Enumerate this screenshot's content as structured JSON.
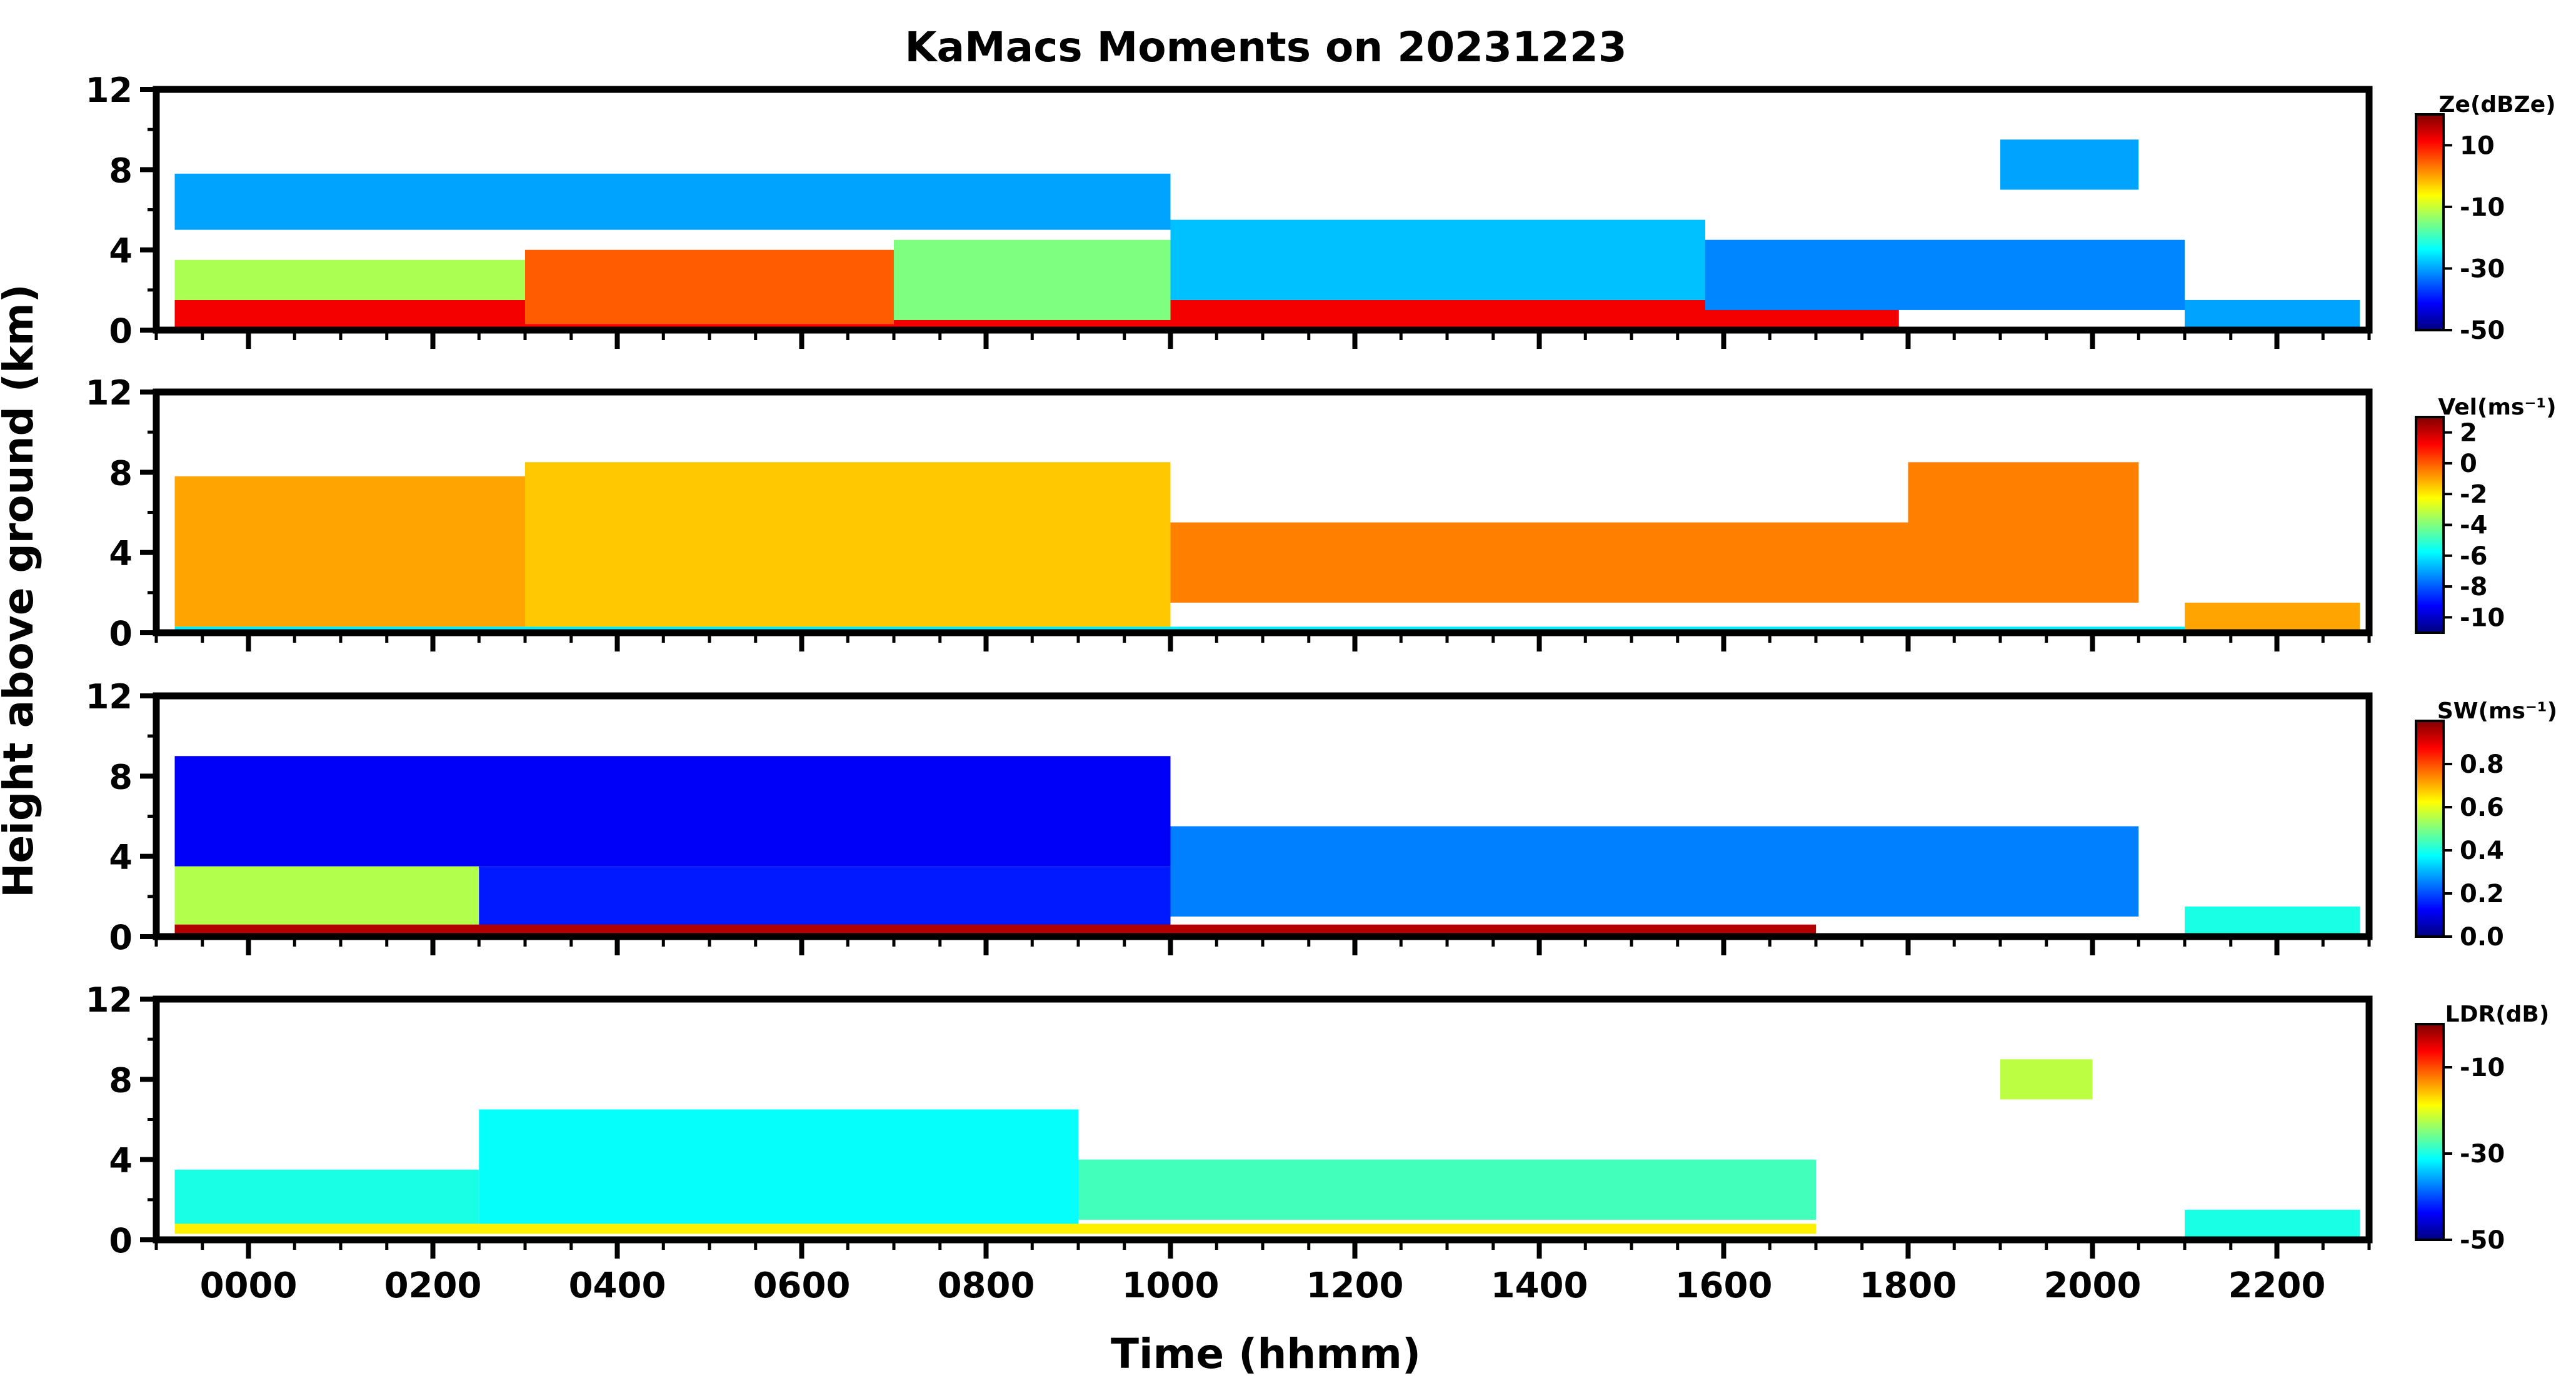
{
  "chart_data": {
    "type": "heatmap",
    "title": "KaMacs Moments on 20231223",
    "xlabel": "Time (hhmm)",
    "ylabel": "Height above ground (km)",
    "x_range": [
      -100,
      2300
    ],
    "x_ticks": [
      "0000",
      "0200",
      "0400",
      "0600",
      "0800",
      "1000",
      "1200",
      "1400",
      "1600",
      "1800",
      "2000",
      "2200"
    ],
    "y_range": [
      0,
      12
    ],
    "y_ticks": [
      "0",
      "4",
      "8",
      "12"
    ],
    "colormap": "jet",
    "colormap_stops": [
      "#00007f",
      "#0000ff",
      "#007fff",
      "#00ffff",
      "#7fff7f",
      "#ffff00",
      "#ff7f00",
      "#ff0000",
      "#7f0000"
    ],
    "panels": [
      {
        "id": "ze",
        "cbar_label": "Ze(dBZe)",
        "cbar_range": [
          -50,
          20
        ],
        "cbar_ticks": [
          "10",
          "-10",
          "-30",
          "-50"
        ],
        "cbar_tick_values": [
          10,
          -10,
          -30,
          -50
        ],
        "layers": [
          {
            "t0": -80,
            "t1": 1790,
            "h0": 0,
            "h1": 1.5,
            "v": 12
          },
          {
            "t0": 300,
            "t1": 700,
            "h0": 0.3,
            "h1": 4,
            "v": 5
          },
          {
            "t0": 700,
            "t1": 1000,
            "h0": 0.5,
            "h1": 4.5,
            "v": -15
          },
          {
            "t0": -80,
            "t1": 300,
            "h0": 1.5,
            "h1": 3.5,
            "v": -12
          },
          {
            "t0": -80,
            "t1": 1000,
            "h0": 5,
            "h1": 7.8,
            "v": -30
          },
          {
            "t0": 1000,
            "t1": 1580,
            "h0": 1.5,
            "h1": 5.5,
            "v": -28
          },
          {
            "t0": 1580,
            "t1": 2100,
            "h0": 1,
            "h1": 4.5,
            "v": -32
          },
          {
            "t0": 1900,
            "t1": 2050,
            "h0": 7,
            "h1": 9.5,
            "v": -30
          },
          {
            "t0": 2100,
            "t1": 2290,
            "h0": 0,
            "h1": 1.5,
            "v": -30
          }
        ]
      },
      {
        "id": "vel",
        "cbar_label": "Vel(ms⁻¹)",
        "cbar_range": [
          -11,
          3
        ],
        "cbar_ticks": [
          "2",
          "0",
          "-2",
          "-4",
          "-6",
          "-8",
          "-10"
        ],
        "cbar_tick_values": [
          2,
          0,
          -2,
          -4,
          -6,
          -8,
          -10
        ],
        "layers": [
          {
            "t0": -80,
            "t1": 300,
            "h0": 0.3,
            "h1": 7.8,
            "v": -1
          },
          {
            "t0": 300,
            "t1": 1000,
            "h0": 0.3,
            "h1": 8.5,
            "v": -1.5
          },
          {
            "t0": 1000,
            "t1": 1800,
            "h0": 1.5,
            "h1": 5.5,
            "v": -0.5
          },
          {
            "t0": 1800,
            "t1": 2050,
            "h0": 1.5,
            "h1": 8.5,
            "v": -0.5
          },
          {
            "t0": -80,
            "t1": 2290,
            "h0": 0,
            "h1": 0.3,
            "v": -6
          },
          {
            "t0": 2100,
            "t1": 2290,
            "h0": 0,
            "h1": 1.5,
            "v": -1
          }
        ]
      },
      {
        "id": "sw",
        "cbar_label": "SW(ms⁻¹)",
        "cbar_range": [
          0,
          1
        ],
        "cbar_ticks": [
          "0.8",
          "0.6",
          "0.4",
          "0.2",
          "0.0"
        ],
        "cbar_tick_values": [
          0.8,
          0.6,
          0.4,
          0.2,
          0.0
        ],
        "layers": [
          {
            "t0": -80,
            "t1": 1000,
            "h0": 3.5,
            "h1": 9,
            "v": 0.12
          },
          {
            "t0": -80,
            "t1": 250,
            "h0": 0.5,
            "h1": 3.5,
            "v": 0.55
          },
          {
            "t0": 250,
            "t1": 1000,
            "h0": 0.5,
            "h1": 3.5,
            "v": 0.15
          },
          {
            "t0": 1000,
            "t1": 2050,
            "h0": 1,
            "h1": 5.5,
            "v": 0.25
          },
          {
            "t0": -80,
            "t1": 1700,
            "h0": 0,
            "h1": 0.6,
            "v": 0.95
          },
          {
            "t0": 2100,
            "t1": 2290,
            "h0": 0,
            "h1": 1.5,
            "v": 0.4
          }
        ]
      },
      {
        "id": "ldr",
        "cbar_label": "LDR(dB)",
        "cbar_range": [
          -50,
          0
        ],
        "cbar_ticks": [
          "-10",
          "-30",
          "-50"
        ],
        "cbar_tick_values": [
          -10,
          -30,
          -50
        ],
        "layers": [
          {
            "t0": -80,
            "t1": 250,
            "h0": 0.5,
            "h1": 3.5,
            "v": -30
          },
          {
            "t0": 250,
            "t1": 900,
            "h0": 0.5,
            "h1": 6.5,
            "v": -31
          },
          {
            "t0": 900,
            "t1": 1700,
            "h0": 1,
            "h1": 4,
            "v": -28
          },
          {
            "t0": -80,
            "t1": 1700,
            "h0": 0.3,
            "h1": 0.8,
            "v": -18
          },
          {
            "t0": 1900,
            "t1": 2000,
            "h0": 7,
            "h1": 9,
            "v": -22
          },
          {
            "t0": 2100,
            "t1": 2290,
            "h0": 0,
            "h1": 1.5,
            "v": -30
          }
        ]
      }
    ]
  }
}
